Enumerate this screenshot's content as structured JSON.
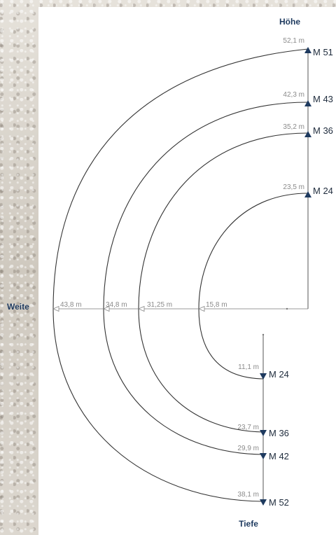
{
  "axes": {
    "hoehe": "Höhe",
    "tiefe": "Tiefe",
    "weite": "Weite"
  },
  "colors": {
    "curve": "#333333",
    "marker": "#1e3a5f",
    "small_text": "#8a8a8a",
    "title": "#1e3a5f"
  },
  "height_entries": [
    {
      "value": "52,1 m",
      "label": "M 51"
    },
    {
      "value": "42,3 m",
      "label": "M 43"
    },
    {
      "value": "35,2 m",
      "label": "M 36"
    },
    {
      "value": "23,5 m",
      "label": "M 24"
    }
  ],
  "width_entries": [
    {
      "value": "43,8 m"
    },
    {
      "value": "34,8 m"
    },
    {
      "value": "31,25 m"
    },
    {
      "value": "15,8 m"
    }
  ],
  "depth_entries": [
    {
      "value": "11,1 m",
      "label": "M 24"
    },
    {
      "value": "23,7 m",
      "label": "M 36"
    },
    {
      "value": "29,9 m",
      "label": "M 42"
    },
    {
      "value": "38,1 m",
      "label": "M 52"
    }
  ]
}
